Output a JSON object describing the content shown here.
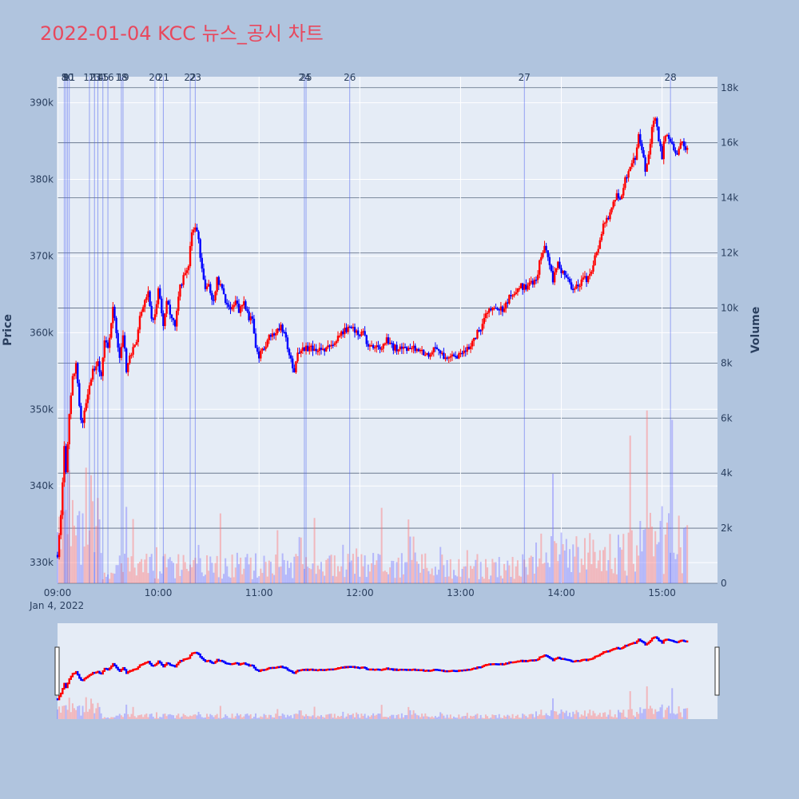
{
  "title": "2022-01-04 KCC 뉴스_공시 차트",
  "colors": {
    "up": "#ff0000",
    "down": "#0000ff",
    "background": "#b0c4de",
    "plot": "#e5ecf6",
    "title": "#e8485d"
  },
  "chart_data": {
    "type": "candlestick",
    "y_axis_label": "Price",
    "y2_axis_label": "Volume",
    "date_label": "Jan 4, 2022",
    "price_ticks": [
      "330k",
      "340k",
      "350k",
      "360k",
      "370k",
      "380k",
      "390k"
    ],
    "price_tick_values": [
      330000,
      340000,
      350000,
      360000,
      370000,
      380000,
      390000
    ],
    "price_range": [
      327300,
      393400
    ],
    "volume_ticks": [
      "0",
      "2k",
      "4k",
      "6k",
      "8k",
      "10k",
      "12k",
      "14k",
      "16k",
      "18k"
    ],
    "volume_tick_values": [
      0,
      2000,
      4000,
      6000,
      8000,
      10000,
      12000,
      14000,
      16000,
      18000
    ],
    "volume_range": [
      0,
      18400
    ],
    "time_ticks": [
      "09:00",
      "10:00",
      "11:00",
      "12:00",
      "13:00",
      "14:00",
      "15:00"
    ],
    "time_tick_minutes": [
      540,
      600,
      660,
      720,
      780,
      840,
      900
    ],
    "time_range_minutes": [
      540,
      933
    ],
    "price_path": [
      [
        "09:00",
        331000
      ],
      [
        "09:02",
        336000
      ],
      [
        "09:04",
        345000
      ],
      [
        "09:05",
        342000
      ],
      [
        "09:07",
        349000
      ],
      [
        "09:09",
        354000
      ],
      [
        "09:11",
        356000
      ],
      [
        "09:13",
        350000
      ],
      [
        "09:15",
        348000
      ],
      [
        "09:17",
        351000
      ],
      [
        "09:19",
        353000
      ],
      [
        "09:21",
        355000
      ],
      [
        "09:24",
        356000
      ],
      [
        "09:26",
        354000
      ],
      [
        "09:28",
        359000
      ],
      [
        "09:30",
        358000
      ],
      [
        "09:33",
        363000
      ],
      [
        "09:35",
        360000
      ],
      [
        "09:37",
        357000
      ],
      [
        "09:39",
        360000
      ],
      [
        "09:41",
        355000
      ],
      [
        "09:43",
        357000
      ],
      [
        "09:47",
        359000
      ],
      [
        "09:49",
        362000
      ],
      [
        "09:52",
        364000
      ],
      [
        "09:54",
        365000
      ],
      [
        "09:56",
        362000
      ],
      [
        "09:58",
        362000
      ],
      [
        "10:00",
        366000
      ],
      [
        "10:03",
        361000
      ],
      [
        "10:05",
        364000
      ],
      [
        "10:08",
        362000
      ],
      [
        "10:10",
        361000
      ],
      [
        "10:13",
        366000
      ],
      [
        "10:16",
        368000
      ],
      [
        "10:18",
        369000
      ],
      [
        "10:20",
        373000
      ],
      [
        "10:22",
        374000
      ],
      [
        "10:24",
        372000
      ],
      [
        "10:26",
        368000
      ],
      [
        "10:28",
        366000
      ],
      [
        "10:30",
        366000
      ],
      [
        "10:33",
        364000
      ],
      [
        "10:35",
        367000
      ],
      [
        "10:38",
        366000
      ],
      [
        "10:40",
        364000
      ],
      [
        "10:43",
        363000
      ],
      [
        "10:46",
        364000
      ],
      [
        "10:48",
        363000
      ],
      [
        "10:51",
        364000
      ],
      [
        "10:54",
        362000
      ],
      [
        "10:56",
        362000
      ],
      [
        "10:58",
        358000
      ],
      [
        "11:00",
        357000
      ],
      [
        "11:03",
        358000
      ],
      [
        "11:05",
        359000
      ],
      [
        "11:08",
        360000
      ],
      [
        "11:10",
        360000
      ],
      [
        "11:13",
        361000
      ],
      [
        "11:15",
        360000
      ],
      [
        "11:18",
        357000
      ],
      [
        "11:21",
        355000
      ],
      [
        "11:23",
        357000
      ],
      [
        "11:26",
        358000
      ],
      [
        "11:30",
        358000
      ],
      [
        "11:35",
        358000
      ],
      [
        "11:38",
        358000
      ],
      [
        "11:42",
        358000
      ],
      [
        "11:45",
        359000
      ],
      [
        "11:50",
        360000
      ],
      [
        "11:55",
        361000
      ],
      [
        "11:58",
        360000
      ],
      [
        "12:02",
        360000
      ],
      [
        "12:05",
        358000
      ],
      [
        "12:08",
        358000
      ],
      [
        "12:12",
        358000
      ],
      [
        "12:16",
        359000
      ],
      [
        "12:20",
        358000
      ],
      [
        "12:25",
        358000
      ],
      [
        "12:30",
        358000
      ],
      [
        "12:35",
        358000
      ],
      [
        "12:40",
        357000
      ],
      [
        "12:45",
        358000
      ],
      [
        "12:50",
        357000
      ],
      [
        "12:55",
        357000
      ],
      [
        "13:00",
        357000
      ],
      [
        "13:05",
        358000
      ],
      [
        "13:08",
        359000
      ],
      [
        "13:10",
        360000
      ],
      [
        "13:13",
        361000
      ],
      [
        "13:16",
        363000
      ],
      [
        "13:20",
        363000
      ],
      [
        "13:25",
        363000
      ],
      [
        "13:30",
        365000
      ],
      [
        "13:35",
        366000
      ],
      [
        "13:40",
        366000
      ],
      [
        "13:45",
        367000
      ],
      [
        "13:47",
        369000
      ],
      [
        "13:50",
        371000
      ],
      [
        "13:53",
        369000
      ],
      [
        "13:55",
        367000
      ],
      [
        "13:58",
        369000
      ],
      [
        "14:00",
        368000
      ],
      [
        "14:03",
        367000
      ],
      [
        "14:06",
        366000
      ],
      [
        "14:08",
        366000
      ],
      [
        "14:10",
        366000
      ],
      [
        "14:13",
        367000
      ],
      [
        "14:15",
        367000
      ],
      [
        "14:18",
        368000
      ],
      [
        "14:20",
        370000
      ],
      [
        "14:23",
        372000
      ],
      [
        "14:25",
        374000
      ],
      [
        "14:28",
        375000
      ],
      [
        "14:30",
        376000
      ],
      [
        "14:33",
        378000
      ],
      [
        "14:35",
        377000
      ],
      [
        "14:38",
        380000
      ],
      [
        "14:41",
        382000
      ],
      [
        "14:44",
        383000
      ],
      [
        "14:46",
        386000
      ],
      [
        "14:48",
        384000
      ],
      [
        "14:50",
        381000
      ],
      [
        "14:52",
        383000
      ],
      [
        "14:54",
        387000
      ],
      [
        "14:56",
        388000
      ],
      [
        "14:58",
        385000
      ],
      [
        "15:00",
        383000
      ],
      [
        "15:02",
        386000
      ],
      [
        "15:05",
        385000
      ],
      [
        "15:08",
        383000
      ],
      [
        "15:11",
        385000
      ],
      [
        "15:15",
        384000
      ]
    ],
    "news_markers": [
      {
        "label": "8",
        "time": "09:04"
      },
      {
        "label": "9",
        "time": "09:05"
      },
      {
        "label": "10",
        "time": "09:06"
      },
      {
        "label": "11",
        "time": "09:07"
      },
      {
        "label": "12",
        "time": "09:19"
      },
      {
        "label": "13",
        "time": "09:22"
      },
      {
        "label": "14",
        "time": "09:24"
      },
      {
        "label": "15",
        "time": "09:27"
      },
      {
        "label": "16",
        "time": "09:30"
      },
      {
        "label": "18",
        "time": "09:38"
      },
      {
        "label": "19",
        "time": "09:39"
      },
      {
        "label": "20",
        "time": "09:58"
      },
      {
        "label": "21",
        "time": "10:03"
      },
      {
        "label": "22",
        "time": "10:19"
      },
      {
        "label": "23",
        "time": "10:22"
      },
      {
        "label": "24",
        "time": "11:27"
      },
      {
        "label": "25",
        "time": "11:28"
      },
      {
        "label": "26",
        "time": "11:54"
      },
      {
        "label": "27",
        "time": "13:38"
      },
      {
        "label": "28",
        "time": "15:05"
      }
    ]
  }
}
